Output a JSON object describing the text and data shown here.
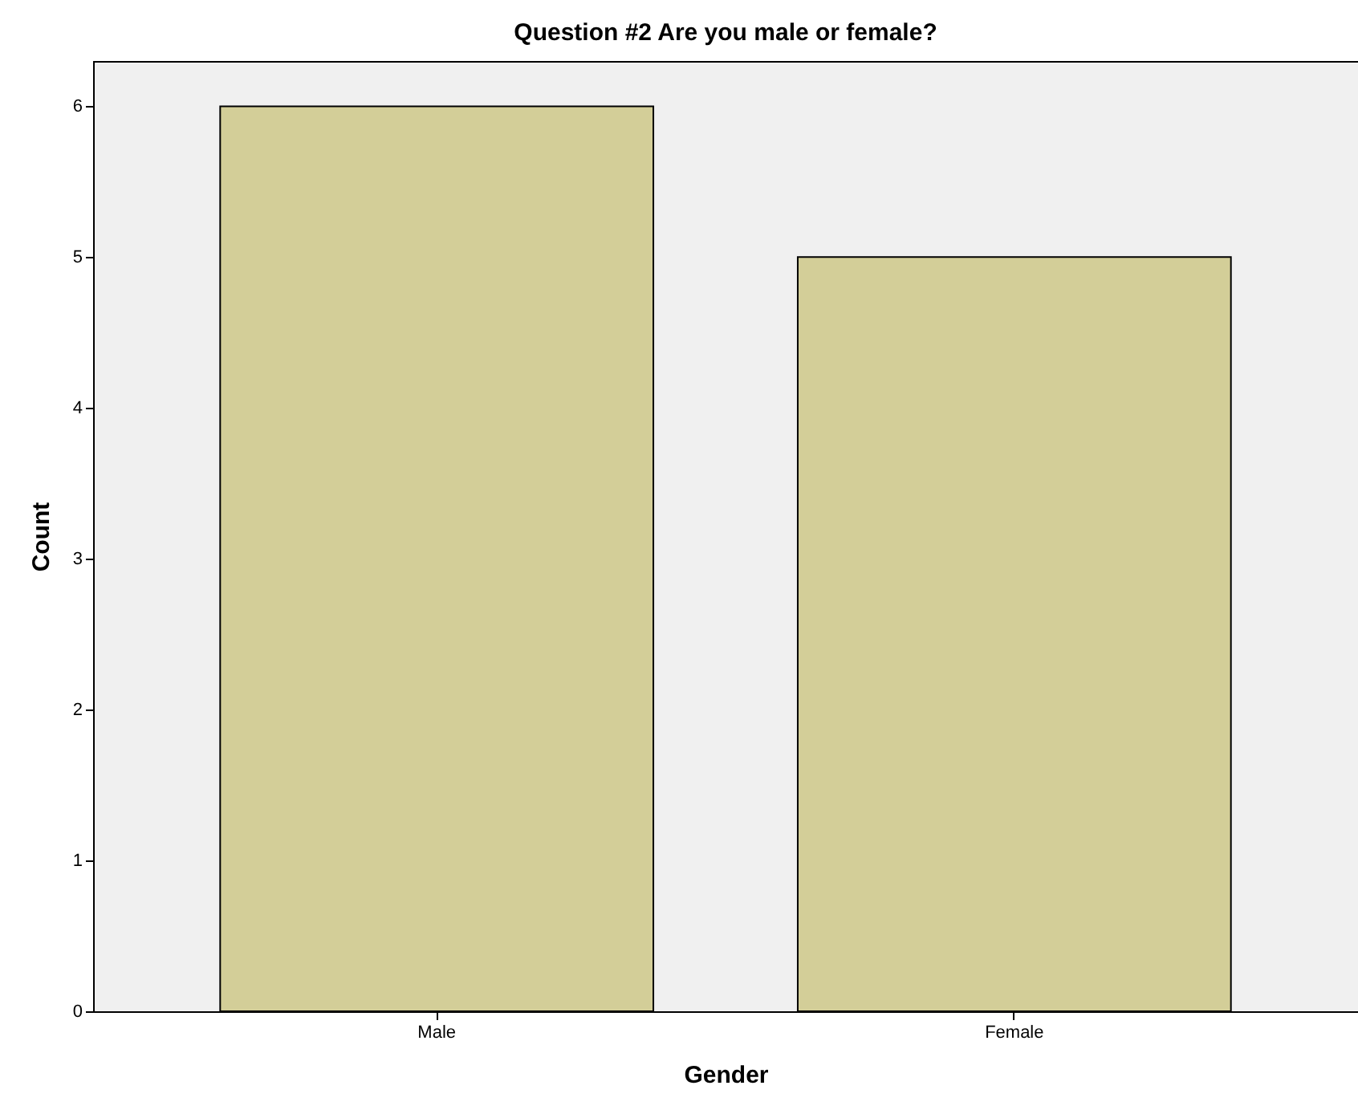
{
  "chart_data": {
    "type": "bar",
    "title": "Question #2 Are you male or female?",
    "xlabel": "Gender",
    "ylabel": "Count",
    "categories": [
      "Male",
      "Female"
    ],
    "values": [
      6,
      5
    ],
    "color": "#d3ce98",
    "ylim": [
      0,
      6.3
    ],
    "yticks": [
      0,
      1,
      2,
      3,
      4,
      5,
      6
    ],
    "grid": false
  }
}
